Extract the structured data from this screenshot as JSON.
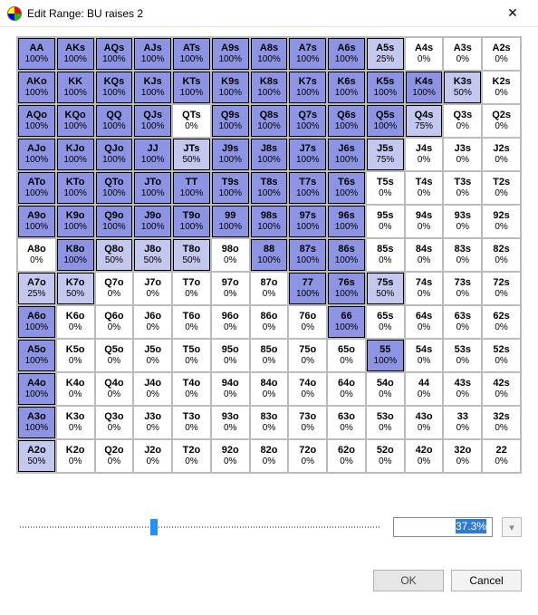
{
  "window": {
    "title": "Edit Range: BU raises 2"
  },
  "colors": {
    "full": "#8d94e3",
    "light": "#c4c7ee",
    "none": "#ffffff"
  },
  "ranks": [
    "A",
    "K",
    "Q",
    "J",
    "T",
    "9",
    "8",
    "7",
    "6",
    "5",
    "4",
    "3",
    "2"
  ],
  "grid": [
    [
      [
        "AA",
        100,
        1
      ],
      [
        "AKs",
        100,
        1
      ],
      [
        "AQs",
        100,
        1
      ],
      [
        "AJs",
        100,
        1
      ],
      [
        "ATs",
        100,
        1
      ],
      [
        "A9s",
        100,
        1
      ],
      [
        "A8s",
        100,
        1
      ],
      [
        "A7s",
        100,
        1
      ],
      [
        "A6s",
        100,
        1
      ],
      [
        "A5s",
        25,
        1
      ],
      [
        "A4s",
        0,
        0
      ],
      [
        "A3s",
        0,
        0
      ],
      [
        "A2s",
        0,
        0
      ]
    ],
    [
      [
        "AKo",
        100,
        1
      ],
      [
        "KK",
        100,
        1
      ],
      [
        "KQs",
        100,
        1
      ],
      [
        "KJs",
        100,
        1
      ],
      [
        "KTs",
        100,
        1
      ],
      [
        "K9s",
        100,
        1
      ],
      [
        "K8s",
        100,
        1
      ],
      [
        "K7s",
        100,
        1
      ],
      [
        "K6s",
        100,
        1
      ],
      [
        "K5s",
        100,
        1
      ],
      [
        "K4s",
        100,
        1
      ],
      [
        "K3s",
        50,
        1
      ],
      [
        "K2s",
        0,
        0
      ]
    ],
    [
      [
        "AQo",
        100,
        1
      ],
      [
        "KQo",
        100,
        1
      ],
      [
        "QQ",
        100,
        1
      ],
      [
        "QJs",
        100,
        1
      ],
      [
        "QTs",
        0,
        0
      ],
      [
        "Q9s",
        100,
        1
      ],
      [
        "Q8s",
        100,
        1
      ],
      [
        "Q7s",
        100,
        1
      ],
      [
        "Q6s",
        100,
        1
      ],
      [
        "Q5s",
        100,
        1
      ],
      [
        "Q4s",
        75,
        1
      ],
      [
        "Q3s",
        0,
        0
      ],
      [
        "Q2s",
        0,
        0
      ]
    ],
    [
      [
        "AJo",
        100,
        1
      ],
      [
        "KJo",
        100,
        1
      ],
      [
        "QJo",
        100,
        1
      ],
      [
        "JJ",
        100,
        1
      ],
      [
        "JTs",
        50,
        1
      ],
      [
        "J9s",
        100,
        1
      ],
      [
        "J8s",
        100,
        1
      ],
      [
        "J7s",
        100,
        1
      ],
      [
        "J6s",
        100,
        1
      ],
      [
        "J5s",
        75,
        1
      ],
      [
        "J4s",
        0,
        0
      ],
      [
        "J3s",
        0,
        0
      ],
      [
        "J2s",
        0,
        0
      ]
    ],
    [
      [
        "ATo",
        100,
        1
      ],
      [
        "KTo",
        100,
        1
      ],
      [
        "QTo",
        100,
        1
      ],
      [
        "JTo",
        100,
        1
      ],
      [
        "TT",
        100,
        1
      ],
      [
        "T9s",
        100,
        1
      ],
      [
        "T8s",
        100,
        1
      ],
      [
        "T7s",
        100,
        1
      ],
      [
        "T6s",
        100,
        1
      ],
      [
        "T5s",
        0,
        0
      ],
      [
        "T4s",
        0,
        0
      ],
      [
        "T3s",
        0,
        0
      ],
      [
        "T2s",
        0,
        0
      ]
    ],
    [
      [
        "A9o",
        100,
        1
      ],
      [
        "K9o",
        100,
        1
      ],
      [
        "Q9o",
        100,
        1
      ],
      [
        "J9o",
        100,
        1
      ],
      [
        "T9o",
        100,
        1
      ],
      [
        "99",
        100,
        1
      ],
      [
        "98s",
        100,
        1
      ],
      [
        "97s",
        100,
        1
      ],
      [
        "96s",
        100,
        1
      ],
      [
        "95s",
        0,
        0
      ],
      [
        "94s",
        0,
        0
      ],
      [
        "93s",
        0,
        0
      ],
      [
        "92s",
        0,
        0
      ]
    ],
    [
      [
        "A8o",
        0,
        0
      ],
      [
        "K8o",
        100,
        1
      ],
      [
        "Q8o",
        50,
        1
      ],
      [
        "J8o",
        50,
        1
      ],
      [
        "T8o",
        50,
        1
      ],
      [
        "98o",
        0,
        0
      ],
      [
        "88",
        100,
        1
      ],
      [
        "87s",
        100,
        1
      ],
      [
        "86s",
        100,
        1
      ],
      [
        "85s",
        0,
        0
      ],
      [
        "84s",
        0,
        0
      ],
      [
        "83s",
        0,
        0
      ],
      [
        "82s",
        0,
        0
      ]
    ],
    [
      [
        "A7o",
        25,
        1
      ],
      [
        "K7o",
        50,
        1
      ],
      [
        "Q7o",
        0,
        0
      ],
      [
        "J7o",
        0,
        0
      ],
      [
        "T7o",
        0,
        0
      ],
      [
        "97o",
        0,
        0
      ],
      [
        "87o",
        0,
        0
      ],
      [
        "77",
        100,
        1
      ],
      [
        "76s",
        100,
        1
      ],
      [
        "75s",
        50,
        1
      ],
      [
        "74s",
        0,
        0
      ],
      [
        "73s",
        0,
        0
      ],
      [
        "72s",
        0,
        0
      ]
    ],
    [
      [
        "A6o",
        100,
        1
      ],
      [
        "K6o",
        0,
        0
      ],
      [
        "Q6o",
        0,
        0
      ],
      [
        "J6o",
        0,
        0
      ],
      [
        "T6o",
        0,
        0
      ],
      [
        "96o",
        0,
        0
      ],
      [
        "86o",
        0,
        0
      ],
      [
        "76o",
        0,
        0
      ],
      [
        "66",
        100,
        1
      ],
      [
        "65s",
        0,
        0
      ],
      [
        "64s",
        0,
        0
      ],
      [
        "63s",
        0,
        0
      ],
      [
        "62s",
        0,
        0
      ]
    ],
    [
      [
        "A5o",
        100,
        1
      ],
      [
        "K5o",
        0,
        0
      ],
      [
        "Q5o",
        0,
        0
      ],
      [
        "J5o",
        0,
        0
      ],
      [
        "T5o",
        0,
        0
      ],
      [
        "95o",
        0,
        0
      ],
      [
        "85o",
        0,
        0
      ],
      [
        "75o",
        0,
        0
      ],
      [
        "65o",
        0,
        0
      ],
      [
        "55",
        100,
        1
      ],
      [
        "54s",
        0,
        0
      ],
      [
        "53s",
        0,
        0
      ],
      [
        "52s",
        0,
        0
      ]
    ],
    [
      [
        "A4o",
        100,
        1
      ],
      [
        "K4o",
        0,
        0
      ],
      [
        "Q4o",
        0,
        0
      ],
      [
        "J4o",
        0,
        0
      ],
      [
        "T4o",
        0,
        0
      ],
      [
        "94o",
        0,
        0
      ],
      [
        "84o",
        0,
        0
      ],
      [
        "74o",
        0,
        0
      ],
      [
        "64o",
        0,
        0
      ],
      [
        "54o",
        0,
        0
      ],
      [
        "44",
        0,
        0
      ],
      [
        "43s",
        0,
        0
      ],
      [
        "42s",
        0,
        0
      ]
    ],
    [
      [
        "A3o",
        100,
        1
      ],
      [
        "K3o",
        0,
        0
      ],
      [
        "Q3o",
        0,
        0
      ],
      [
        "J3o",
        0,
        0
      ],
      [
        "T3o",
        0,
        0
      ],
      [
        "93o",
        0,
        0
      ],
      [
        "83o",
        0,
        0
      ],
      [
        "73o",
        0,
        0
      ],
      [
        "63o",
        0,
        0
      ],
      [
        "53o",
        0,
        0
      ],
      [
        "43o",
        0,
        0
      ],
      [
        "33",
        0,
        0
      ],
      [
        "32s",
        0,
        0
      ]
    ],
    [
      [
        "A2o",
        50,
        1
      ],
      [
        "K2o",
        0,
        0
      ],
      [
        "Q2o",
        0,
        0
      ],
      [
        "J2o",
        0,
        0
      ],
      [
        "T2o",
        0,
        0
      ],
      [
        "92o",
        0,
        0
      ],
      [
        "82o",
        0,
        0
      ],
      [
        "72o",
        0,
        0
      ],
      [
        "62o",
        0,
        0
      ],
      [
        "52o",
        0,
        0
      ],
      [
        "42o",
        0,
        0
      ],
      [
        "32o",
        0,
        0
      ],
      [
        "22",
        0,
        0
      ]
    ]
  ],
  "slider": {
    "position_pct": 37.3
  },
  "range_pct": "37.3%",
  "buttons": {
    "ok": "OK",
    "cancel": "Cancel"
  }
}
